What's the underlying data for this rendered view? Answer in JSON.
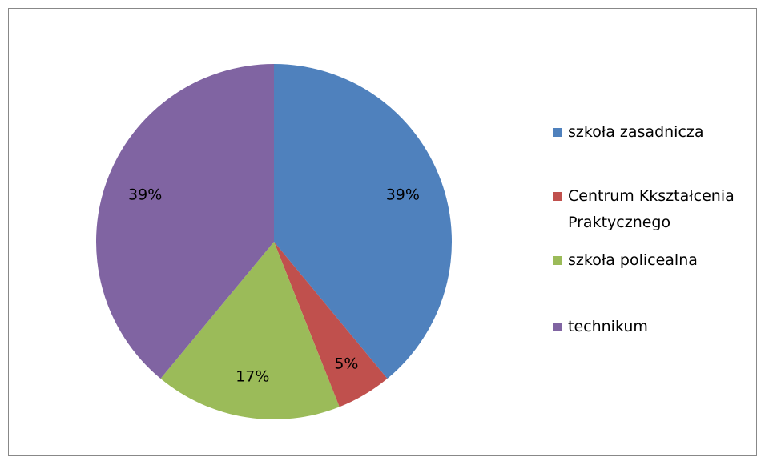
{
  "chart_data": {
    "type": "pie",
    "categories": [
      "szkoła zasadnicza",
      "Centrum Kkształcenia Praktycznego",
      "szkoła policealna",
      "technikum"
    ],
    "values": [
      39,
      5,
      17,
      39
    ],
    "value_labels": [
      "39%",
      "5%",
      "17%",
      "39%"
    ],
    "colors": [
      "#4f81bd",
      "#c0504d",
      "#9bbb59",
      "#8064a2"
    ],
    "legend": "right"
  }
}
